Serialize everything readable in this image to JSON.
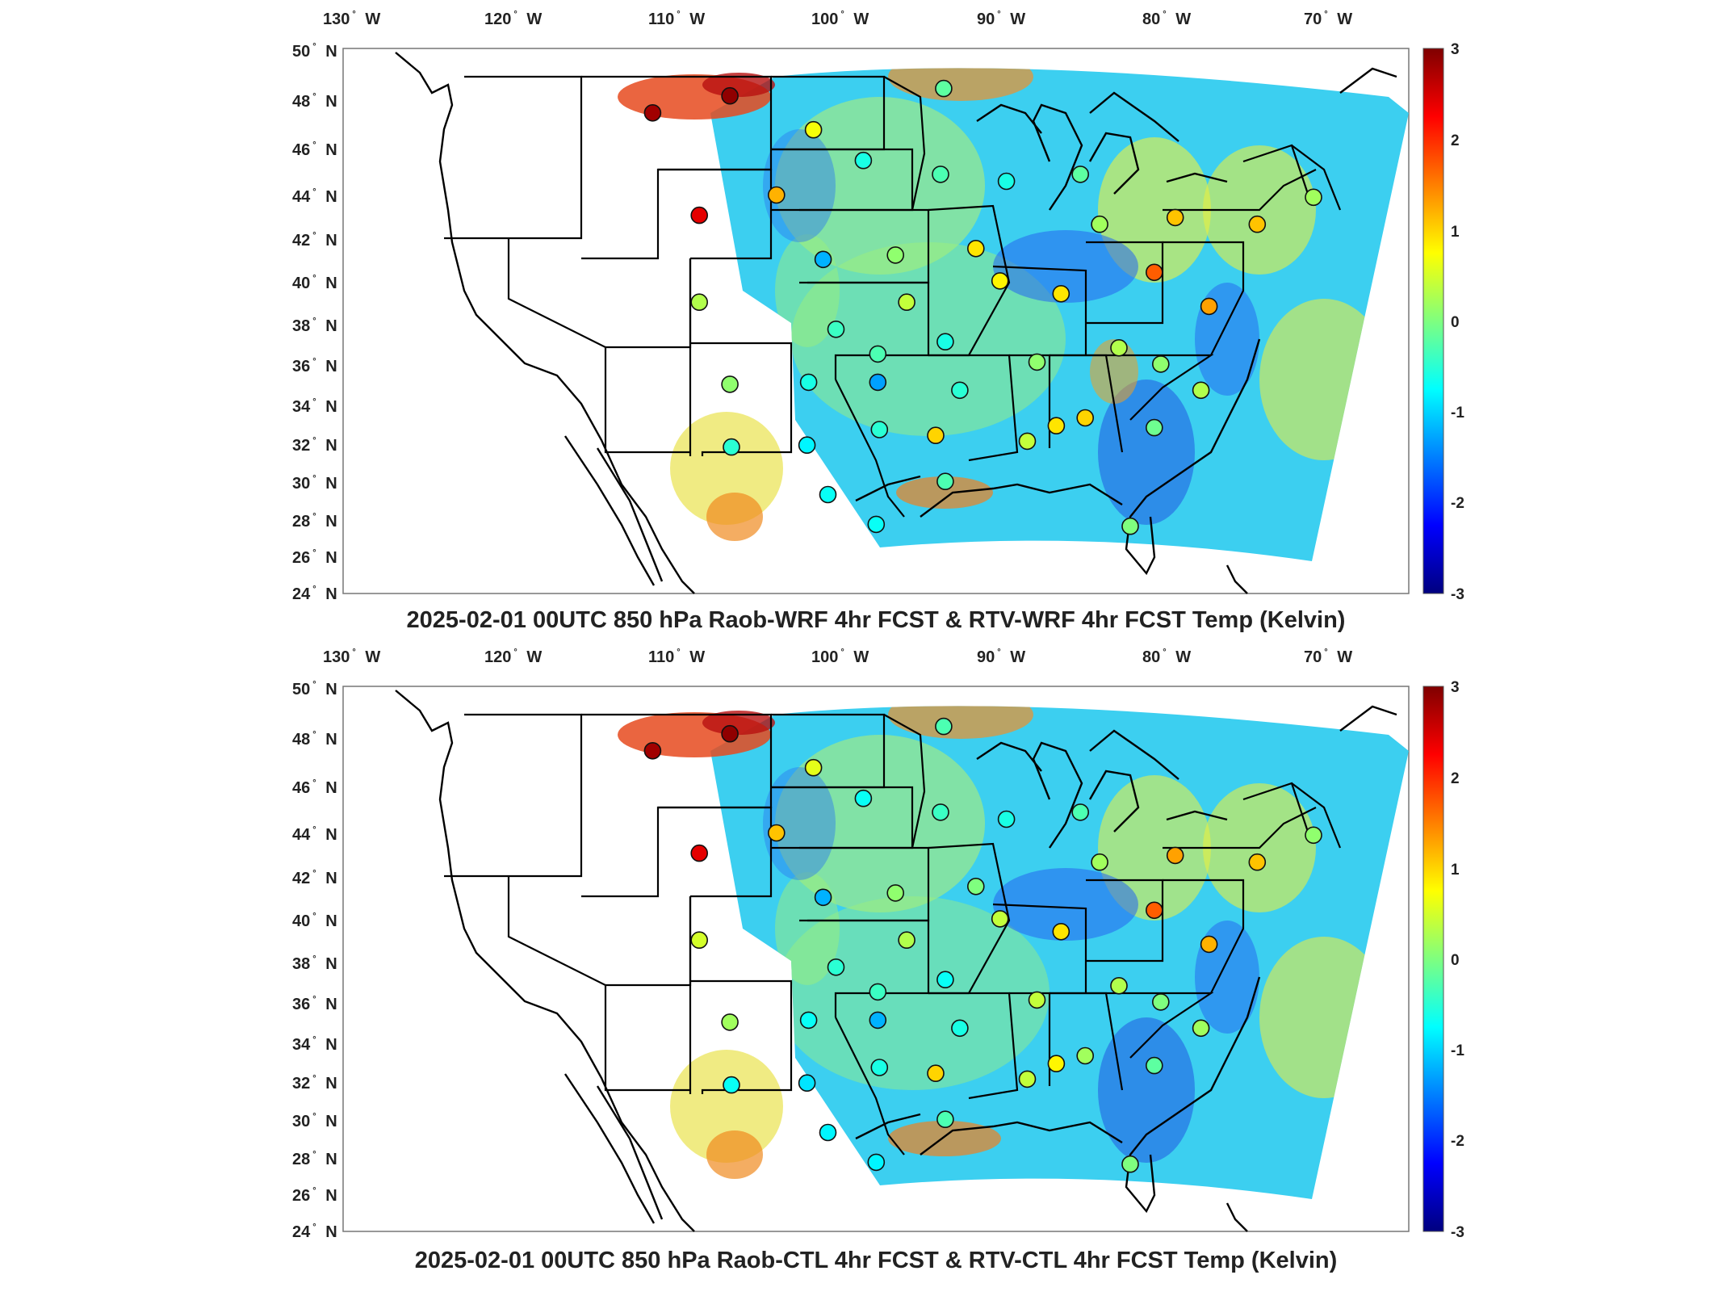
{
  "panels": [
    {
      "title": "2025-02-01 00UTC 850 hPa Raob-WRF 4hr FCST & RTV-WRF 4hr FCST Temp (Kelvin)",
      "lon_labels": [
        "130",
        "120",
        "110",
        "100",
        "90",
        "80",
        "70"
      ],
      "lon_suffix": "W",
      "lat_labels": [
        "50",
        "48",
        "46",
        "44",
        "42",
        "40",
        "38",
        "36",
        "34",
        "32",
        "30",
        "28",
        "26",
        "24"
      ],
      "lat_suffix": "N",
      "colorbar_ticks": [
        "3",
        "2",
        "1",
        "0",
        "-1",
        "-2",
        "-3"
      ],
      "stations": [
        {
          "lon": -111.4,
          "lat": 47.5,
          "value": 2.8
        },
        {
          "lon": -106.6,
          "lat": 48.2,
          "value": 2.9
        },
        {
          "lon": -108.5,
          "lat": 43.1,
          "value": 2.4
        },
        {
          "lon": -108.5,
          "lat": 39.1,
          "value": 0.3
        },
        {
          "lon": -106.6,
          "lat": 35.1,
          "value": 0.1
        },
        {
          "lon": -106.5,
          "lat": 31.9,
          "value": -0.5
        },
        {
          "lon": -103.7,
          "lat": 44.0,
          "value": 1.2
        },
        {
          "lon": -101.4,
          "lat": 46.8,
          "value": 0.7
        },
        {
          "lon": -100.8,
          "lat": 41.1,
          "value": -1.2
        },
        {
          "lon": -100.0,
          "lat": 37.8,
          "value": -0.4
        },
        {
          "lon": -101.7,
          "lat": 35.2,
          "value": -0.6
        },
        {
          "lon": -101.8,
          "lat": 32.0,
          "value": -0.8
        },
        {
          "lon": -100.5,
          "lat": 29.4,
          "value": -0.7
        },
        {
          "lon": -98.3,
          "lat": 45.5,
          "value": -0.6
        },
        {
          "lon": -96.3,
          "lat": 41.3,
          "value": 0.1
        },
        {
          "lon": -95.6,
          "lat": 39.1,
          "value": 0.4
        },
        {
          "lon": -97.4,
          "lat": 36.6,
          "value": -0.3
        },
        {
          "lon": -97.4,
          "lat": 35.2,
          "value": -1.3
        },
        {
          "lon": -97.3,
          "lat": 32.8,
          "value": -0.5
        },
        {
          "lon": -97.5,
          "lat": 27.8,
          "value": -0.7
        },
        {
          "lon": -93.3,
          "lat": 48.5,
          "value": -0.2
        },
        {
          "lon": -93.5,
          "lat": 44.9,
          "value": -0.3
        },
        {
          "lon": -93.2,
          "lat": 37.2,
          "value": -0.6
        },
        {
          "lon": -92.3,
          "lat": 34.8,
          "value": -0.5
        },
        {
          "lon": -93.8,
          "lat": 32.5,
          "value": 1.0
        },
        {
          "lon": -93.2,
          "lat": 30.1,
          "value": -0.3
        },
        {
          "lon": -91.3,
          "lat": 41.6,
          "value": 0.9
        },
        {
          "lon": -89.8,
          "lat": 40.1,
          "value": 0.8
        },
        {
          "lon": -89.4,
          "lat": 44.6,
          "value": -0.6
        },
        {
          "lon": -84.8,
          "lat": 44.9,
          "value": -0.2
        },
        {
          "lon": -87.5,
          "lat": 36.2,
          "value": 0.1
        },
        {
          "lon": -88.1,
          "lat": 32.2,
          "value": 0.4
        },
        {
          "lon": -86.3,
          "lat": 33.0,
          "value": 0.9
        },
        {
          "lon": -84.5,
          "lat": 33.4,
          "value": 1.0
        },
        {
          "lon": -86.0,
          "lat": 39.5,
          "value": 0.9
        },
        {
          "lon": -83.6,
          "lat": 42.7,
          "value": 0.2
        },
        {
          "lon": -80.2,
          "lat": 40.5,
          "value": 1.7
        },
        {
          "lon": -82.4,
          "lat": 36.9,
          "value": 0.3
        },
        {
          "lon": -79.8,
          "lat": 36.1,
          "value": 0.1
        },
        {
          "lon": -80.2,
          "lat": 32.9,
          "value": -0.1
        },
        {
          "lon": -81.7,
          "lat": 27.7,
          "value": 0.0
        },
        {
          "lon": -78.9,
          "lat": 43.0,
          "value": 1.1
        },
        {
          "lon": -76.8,
          "lat": 38.9,
          "value": 1.3
        },
        {
          "lon": -77.3,
          "lat": 34.8,
          "value": 0.3
        },
        {
          "lon": -73.8,
          "lat": 42.7,
          "value": 1.1
        },
        {
          "lon": -70.3,
          "lat": 43.9,
          "value": 0.2
        }
      ]
    },
    {
      "title": "2025-02-01 00UTC 850 hPa Raob-CTL 4hr FCST & RTV-CTL 4hr FCST Temp (Kelvin)",
      "lon_labels": [
        "130",
        "120",
        "110",
        "100",
        "90",
        "80",
        "70"
      ],
      "lon_suffix": "W",
      "lat_labels": [
        "50",
        "48",
        "46",
        "44",
        "42",
        "40",
        "38",
        "36",
        "34",
        "32",
        "30",
        "28",
        "26",
        "24"
      ],
      "lat_suffix": "N",
      "colorbar_ticks": [
        "3",
        "2",
        "1",
        "0",
        "-1",
        "-2",
        "-3"
      ],
      "stations": [
        {
          "lon": -111.4,
          "lat": 47.5,
          "value": 2.8
        },
        {
          "lon": -106.6,
          "lat": 48.2,
          "value": 2.9
        },
        {
          "lon": -108.5,
          "lat": 43.1,
          "value": 2.4
        },
        {
          "lon": -108.5,
          "lat": 39.1,
          "value": 0.5
        },
        {
          "lon": -106.6,
          "lat": 35.1,
          "value": 0.2
        },
        {
          "lon": -106.5,
          "lat": 31.9,
          "value": -0.7
        },
        {
          "lon": -103.7,
          "lat": 44.0,
          "value": 1.1
        },
        {
          "lon": -101.4,
          "lat": 46.8,
          "value": 0.6
        },
        {
          "lon": -100.8,
          "lat": 41.1,
          "value": -1.2
        },
        {
          "lon": -100.0,
          "lat": 37.8,
          "value": -0.5
        },
        {
          "lon": -101.7,
          "lat": 35.2,
          "value": -0.7
        },
        {
          "lon": -101.8,
          "lat": 32.0,
          "value": -0.9
        },
        {
          "lon": -100.5,
          "lat": 29.4,
          "value": -0.8
        },
        {
          "lon": -98.3,
          "lat": 45.5,
          "value": -0.7
        },
        {
          "lon": -96.3,
          "lat": 41.3,
          "value": 0.1
        },
        {
          "lon": -95.6,
          "lat": 39.1,
          "value": 0.3
        },
        {
          "lon": -97.4,
          "lat": 36.6,
          "value": -0.4
        },
        {
          "lon": -97.4,
          "lat": 35.2,
          "value": -1.2
        },
        {
          "lon": -97.3,
          "lat": 32.8,
          "value": -0.6
        },
        {
          "lon": -97.5,
          "lat": 27.8,
          "value": -0.8
        },
        {
          "lon": -93.3,
          "lat": 48.5,
          "value": -0.3
        },
        {
          "lon": -93.5,
          "lat": 44.9,
          "value": -0.4
        },
        {
          "lon": -93.2,
          "lat": 37.2,
          "value": -0.7
        },
        {
          "lon": -92.3,
          "lat": 34.8,
          "value": -0.6
        },
        {
          "lon": -93.8,
          "lat": 32.5,
          "value": 1.0
        },
        {
          "lon": -93.2,
          "lat": 30.1,
          "value": -0.3
        },
        {
          "lon": -91.3,
          "lat": 41.6,
          "value": 0.0
        },
        {
          "lon": -89.8,
          "lat": 40.1,
          "value": 0.4
        },
        {
          "lon": -89.4,
          "lat": 44.6,
          "value": -0.6
        },
        {
          "lon": -84.8,
          "lat": 44.9,
          "value": -0.3
        },
        {
          "lon": -87.5,
          "lat": 36.2,
          "value": 0.4
        },
        {
          "lon": -88.1,
          "lat": 32.2,
          "value": 0.4
        },
        {
          "lon": -86.3,
          "lat": 33.0,
          "value": 0.8
        },
        {
          "lon": -84.5,
          "lat": 33.4,
          "value": 0.2
        },
        {
          "lon": -86.0,
          "lat": 39.5,
          "value": 0.9
        },
        {
          "lon": -83.6,
          "lat": 42.7,
          "value": 0.2
        },
        {
          "lon": -80.2,
          "lat": 40.5,
          "value": 1.7
        },
        {
          "lon": -82.4,
          "lat": 36.9,
          "value": 0.3
        },
        {
          "lon": -79.8,
          "lat": 36.1,
          "value": 0.0
        },
        {
          "lon": -80.2,
          "lat": 32.9,
          "value": -0.2
        },
        {
          "lon": -81.7,
          "lat": 27.7,
          "value": 0.0
        },
        {
          "lon": -78.9,
          "lat": 43.0,
          "value": 1.3
        },
        {
          "lon": -76.8,
          "lat": 38.9,
          "value": 1.2
        },
        {
          "lon": -77.3,
          "lat": 34.8,
          "value": 0.2
        },
        {
          "lon": -73.8,
          "lat": 42.7,
          "value": 1.1
        },
        {
          "lon": -70.3,
          "lat": 43.9,
          "value": 0.1
        }
      ]
    }
  ],
  "colormap": {
    "name": "jet",
    "range": [
      -3,
      3
    ],
    "stops": [
      "#00007f",
      "#0000ff",
      "#007fff",
      "#00ffff",
      "#7fff7f",
      "#ffff00",
      "#ff7f00",
      "#ff0000",
      "#7f0000"
    ]
  },
  "field_color_weights": {
    "cyan": "#33d6f0",
    "yellow": "#d8f050",
    "blue": "#2a6cf0",
    "orange": "#f08a20"
  }
}
